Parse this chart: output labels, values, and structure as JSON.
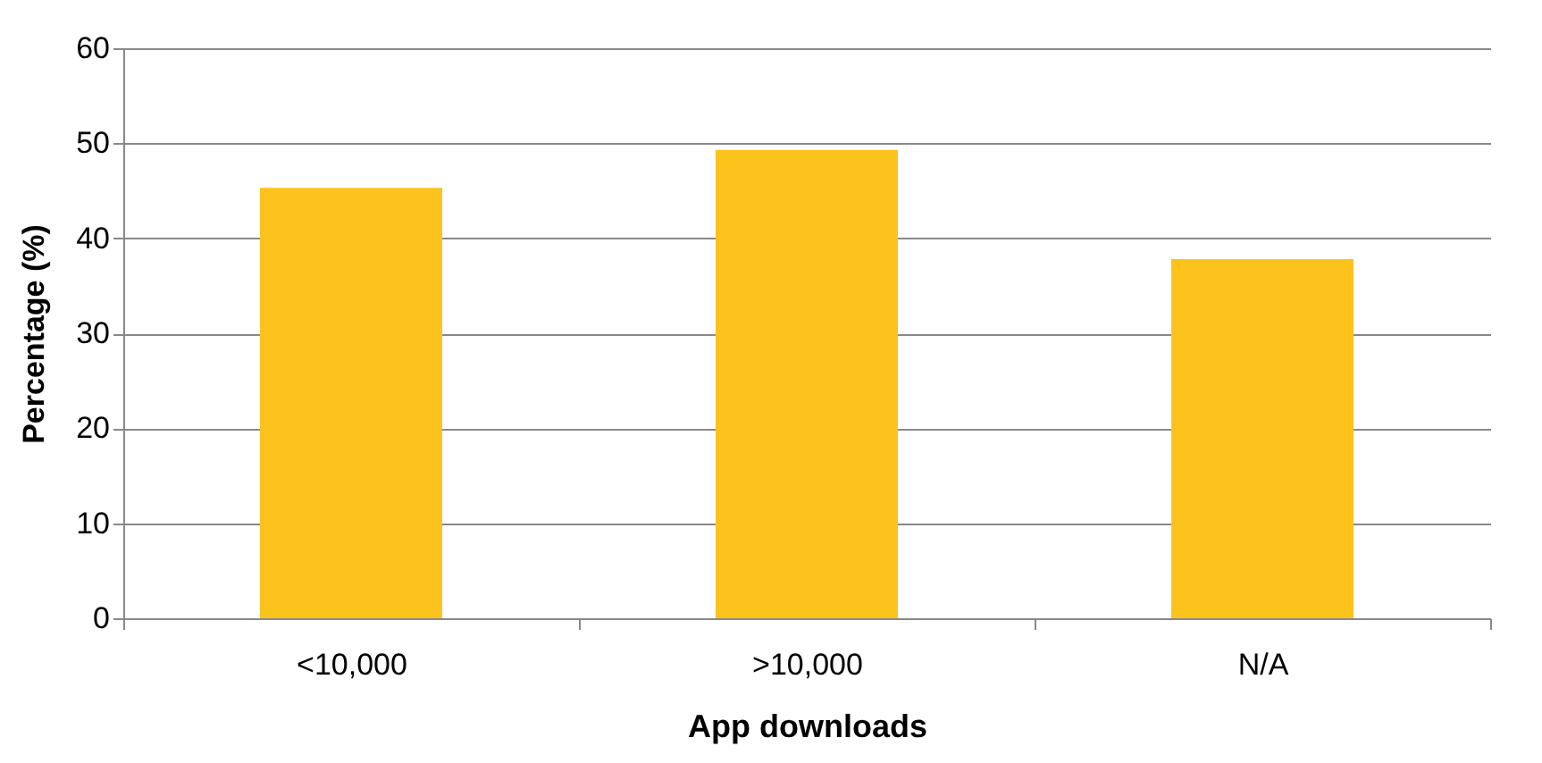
{
  "chart_data": {
    "type": "bar",
    "xlabel": "App downloads",
    "ylabel": "Percentage (%)",
    "categories": [
      "<10,000",
      ">10,000",
      "N/A"
    ],
    "values": [
      45.3,
      49.3,
      37.8
    ],
    "color": "#fdc31d",
    "ylim": [
      0,
      60
    ],
    "yticks": [
      0,
      10,
      20,
      30,
      40,
      50,
      60
    ],
    "grid": "y"
  }
}
